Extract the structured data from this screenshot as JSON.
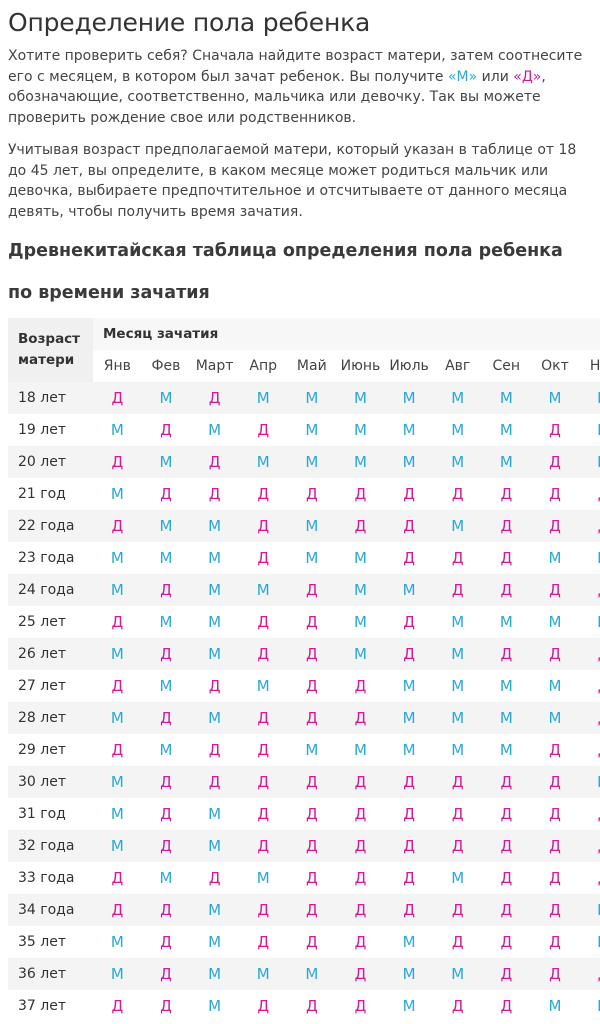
{
  "page": {
    "title": "Определение пола ребенка",
    "intro": [
      {
        "t": "Хотите проверить себя? Сначала найдите возраст матери, затем соотнесите его с месяцем, в котором был зачат ребенок. Вы получите "
      },
      {
        "t": "«М»",
        "c": "m"
      },
      {
        "t": " или "
      },
      {
        "t": "«Д»",
        "c": "d"
      },
      {
        "t": ", обозначающие, соответственно, мальчика или девочку. Так вы можете проверить рождение свое или родственников."
      }
    ],
    "paragraph2": "Учитывая возраст предполагаемой матери, который указан в таблице от 18 до 45 лет, вы определите, в каком месяце может родиться мальчик или девочка, выбираете предпочтительное и отсчитываете от данного месяца девять, чтобы получить время зачатия.",
    "subtitle": "Древнекитайская таблица определения пола ребенка по времени зачатия"
  },
  "table": {
    "age_header": "Возраст матери",
    "month_header": "Месяц зачатия",
    "months": [
      "Янв",
      "Фев",
      "Март",
      "Апр",
      "Май",
      "Июнь",
      "Июль",
      "Авг",
      "Сен",
      "Окт",
      "Ноя"
    ],
    "rows": [
      {
        "age": "18 лет",
        "cells": [
          "Д",
          "М",
          "Д",
          "М",
          "М",
          "М",
          "М",
          "М",
          "М",
          "М",
          "М"
        ]
      },
      {
        "age": "19 лет",
        "cells": [
          "М",
          "Д",
          "М",
          "Д",
          "М",
          "М",
          "М",
          "М",
          "М",
          "Д",
          "М"
        ]
      },
      {
        "age": "20 лет",
        "cells": [
          "Д",
          "М",
          "Д",
          "М",
          "М",
          "М",
          "М",
          "М",
          "М",
          "Д",
          "М"
        ]
      },
      {
        "age": "21 год",
        "cells": [
          "М",
          "Д",
          "Д",
          "Д",
          "Д",
          "Д",
          "Д",
          "Д",
          "Д",
          "Д",
          "Д"
        ]
      },
      {
        "age": "22 года",
        "cells": [
          "Д",
          "М",
          "М",
          "Д",
          "М",
          "Д",
          "Д",
          "М",
          "Д",
          "Д",
          "Д"
        ]
      },
      {
        "age": "23 года",
        "cells": [
          "М",
          "М",
          "М",
          "Д",
          "М",
          "М",
          "Д",
          "Д",
          "Д",
          "М",
          "М"
        ]
      },
      {
        "age": "24 года",
        "cells": [
          "М",
          "Д",
          "М",
          "М",
          "Д",
          "М",
          "М",
          "Д",
          "Д",
          "Д",
          "Д"
        ]
      },
      {
        "age": "25 лет",
        "cells": [
          "Д",
          "М",
          "М",
          "Д",
          "Д",
          "М",
          "Д",
          "М",
          "М",
          "М",
          "М"
        ]
      },
      {
        "age": "26 лет",
        "cells": [
          "М",
          "Д",
          "М",
          "Д",
          "Д",
          "М",
          "Д",
          "М",
          "Д",
          "Д",
          "Д"
        ]
      },
      {
        "age": "27 лет",
        "cells": [
          "Д",
          "М",
          "Д",
          "М",
          "Д",
          "Д",
          "М",
          "М",
          "М",
          "М",
          "Д"
        ]
      },
      {
        "age": "28 лет",
        "cells": [
          "М",
          "Д",
          "М",
          "Д",
          "Д",
          "Д",
          "М",
          "М",
          "М",
          "М",
          "Д"
        ]
      },
      {
        "age": "29 лет",
        "cells": [
          "Д",
          "М",
          "Д",
          "Д",
          "М",
          "М",
          "М",
          "М",
          "М",
          "Д",
          "Д"
        ]
      },
      {
        "age": "30 лет",
        "cells": [
          "М",
          "Д",
          "Д",
          "Д",
          "Д",
          "Д",
          "Д",
          "Д",
          "Д",
          "Д",
          "М"
        ]
      },
      {
        "age": "31 год",
        "cells": [
          "М",
          "Д",
          "М",
          "Д",
          "Д",
          "Д",
          "Д",
          "Д",
          "Д",
          "Д",
          "Д"
        ]
      },
      {
        "age": "32 года",
        "cells": [
          "М",
          "Д",
          "М",
          "Д",
          "Д",
          "Д",
          "Д",
          "Д",
          "Д",
          "Д",
          "Д"
        ]
      },
      {
        "age": "33 года",
        "cells": [
          "Д",
          "М",
          "Д",
          "М",
          "Д",
          "Д",
          "Д",
          "М",
          "Д",
          "Д",
          "Д"
        ]
      },
      {
        "age": "34 года",
        "cells": [
          "Д",
          "Д",
          "М",
          "Д",
          "Д",
          "Д",
          "Д",
          "Д",
          "Д",
          "Д",
          "М"
        ]
      },
      {
        "age": "35 лет",
        "cells": [
          "М",
          "Д",
          "М",
          "Д",
          "Д",
          "Д",
          "М",
          "Д",
          "Д",
          "Д",
          "М"
        ]
      },
      {
        "age": "36 лет",
        "cells": [
          "М",
          "Д",
          "М",
          "М",
          "М",
          "Д",
          "М",
          "М",
          "Д",
          "Д",
          "Д"
        ]
      },
      {
        "age": "37 лет",
        "cells": [
          "Д",
          "Д",
          "М",
          "Д",
          "Д",
          "Д",
          "М",
          "Д",
          "Д",
          "М",
          "М"
        ]
      }
    ]
  },
  "colors": {
    "boy": "#29a8d6",
    "girl": "#d4169a"
  }
}
